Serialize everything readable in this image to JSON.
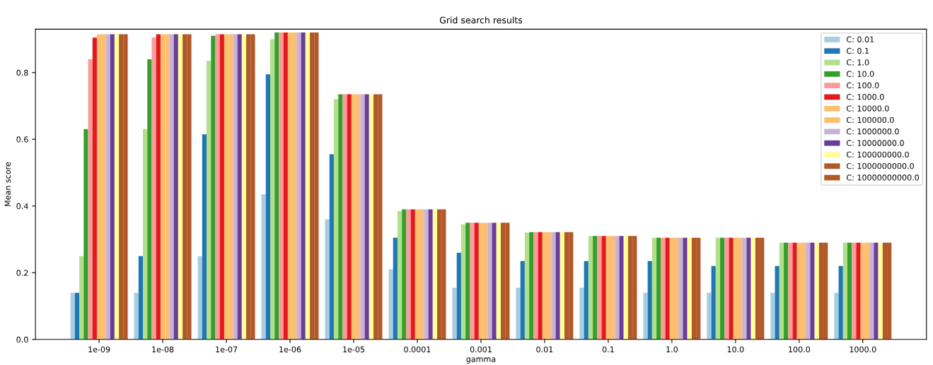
{
  "chart_data": {
    "type": "bar",
    "title": "Grid search results",
    "xlabel": "gamma",
    "ylabel": "Mean score",
    "categories": [
      "1e-09",
      "1e-08",
      "1e-07",
      "1e-06",
      "1e-05",
      "0.0001",
      "0.001",
      "0.01",
      "0.1",
      "1.0",
      "10.0",
      "100.0",
      "1000.0"
    ],
    "ylim": [
      0,
      0.93
    ],
    "yticks": [
      {
        "value": 0,
        "label": "0.0"
      },
      0.2,
      0.4,
      0.6,
      0.8
    ],
    "grid": false,
    "legend": "top right",
    "series": [
      {
        "name": "C: 0.01",
        "color": "#a6cee3",
        "values": [
          0.14,
          0.14,
          0.25,
          0.435,
          0.36,
          0.21,
          0.155,
          0.155,
          0.155,
          0.14,
          0.14,
          0.14,
          0.14
        ]
      },
      {
        "name": "C: 0.1",
        "color": "#1f78b4",
        "values": [
          0.14,
          0.25,
          0.615,
          0.795,
          0.555,
          0.305,
          0.26,
          0.235,
          0.235,
          0.235,
          0.22,
          0.22,
          0.22
        ]
      },
      {
        "name": "C: 1.0",
        "color": "#b2df8a",
        "values": [
          0.25,
          0.63,
          0.835,
          0.9,
          0.72,
          0.385,
          0.345,
          0.32,
          0.31,
          0.305,
          0.305,
          0.29,
          0.29
        ]
      },
      {
        "name": "C: 10.0",
        "color": "#33a02c",
        "values": [
          0.63,
          0.84,
          0.91,
          0.92,
          0.735,
          0.39,
          0.35,
          0.322,
          0.31,
          0.305,
          0.305,
          0.29,
          0.29
        ]
      },
      {
        "name": "C: 100.0",
        "color": "#fb9a99",
        "values": [
          0.84,
          0.905,
          0.915,
          0.92,
          0.735,
          0.39,
          0.35,
          0.322,
          0.31,
          0.305,
          0.305,
          0.29,
          0.29
        ]
      },
      {
        "name": "C: 1000.0",
        "color": "#e31a1c",
        "values": [
          0.905,
          0.915,
          0.915,
          0.92,
          0.735,
          0.39,
          0.35,
          0.322,
          0.31,
          0.305,
          0.305,
          0.29,
          0.29
        ]
      },
      {
        "name": "C: 10000.0",
        "color": "#fdbf6f",
        "values": [
          0.915,
          0.915,
          0.915,
          0.92,
          0.735,
          0.39,
          0.35,
          0.322,
          0.31,
          0.305,
          0.305,
          0.29,
          0.29
        ]
      },
      {
        "name": "C: 100000.0",
        "color": "#fdbf6f",
        "values": [
          0.915,
          0.915,
          0.915,
          0.92,
          0.735,
          0.39,
          0.35,
          0.322,
          0.31,
          0.305,
          0.305,
          0.29,
          0.29
        ]
      },
      {
        "name": "C: 1000000.0",
        "color": "#cab2d6",
        "values": [
          0.915,
          0.915,
          0.915,
          0.92,
          0.735,
          0.39,
          0.35,
          0.322,
          0.31,
          0.305,
          0.305,
          0.29,
          0.29
        ]
      },
      {
        "name": "C: 10000000.0",
        "color": "#6a3d9a",
        "values": [
          0.915,
          0.915,
          0.915,
          0.92,
          0.735,
          0.39,
          0.35,
          0.322,
          0.31,
          0.305,
          0.305,
          0.29,
          0.29
        ]
      },
      {
        "name": "C: 100000000.0",
        "color": "#ffff99",
        "values": [
          0.915,
          0.915,
          0.915,
          0.92,
          0.735,
          0.39,
          0.35,
          0.322,
          0.31,
          0.305,
          0.305,
          0.29,
          0.29
        ]
      },
      {
        "name": "C: 1000000000.0",
        "color": "#b15928",
        "values": [
          0.915,
          0.915,
          0.915,
          0.92,
          0.735,
          0.39,
          0.35,
          0.322,
          0.31,
          0.305,
          0.305,
          0.29,
          0.29
        ]
      },
      {
        "name": "C: 10000000000.0",
        "color": "#b15928",
        "values": [
          0.915,
          0.915,
          0.915,
          0.92,
          0.735,
          0.39,
          0.35,
          0.322,
          0.31,
          0.305,
          0.305,
          0.29,
          0.29
        ]
      }
    ]
  }
}
